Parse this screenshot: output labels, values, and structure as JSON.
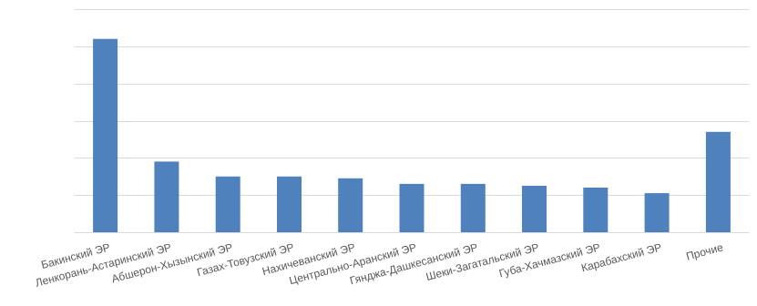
{
  "chart_data": {
    "type": "bar",
    "title": "",
    "xlabel": "",
    "ylabel": "",
    "categories": [
      "Бакинский ЭР",
      "Ленкорань-Астаринский ЭР",
      "Абшерон-Хызынский ЭР",
      "Газах-Товузский ЭР",
      "Нахичеванский ЭР",
      "Центрально-Аранский ЭР",
      "Гянджа-Дашкесанский ЭР",
      "Шеки-Загатальский ЭР",
      "Губа-Хачмазский ЭР",
      "Карабахский ЭР",
      "Прочие"
    ],
    "values": [
      5.2,
      1.9,
      1.5,
      1.5,
      1.45,
      1.3,
      1.3,
      1.25,
      1.2,
      1.05,
      2.7
    ],
    "ylim": [
      0,
      6
    ],
    "yticks": [
      0,
      1,
      2,
      3,
      4,
      5,
      6
    ],
    "ytick_labels_shown": false,
    "grid": true,
    "legend": "none",
    "colors": {
      "bar": "#4f81bd",
      "grid": "#d9d9d9",
      "label": "#595959"
    }
  }
}
